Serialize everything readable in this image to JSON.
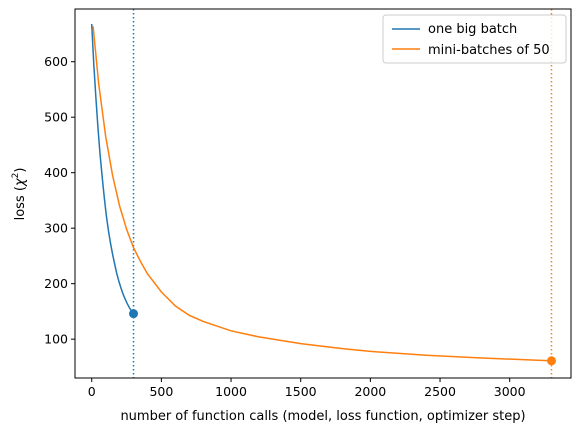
{
  "chart_data": {
    "type": "line",
    "xlabel": "number of function calls (model, loss function, optimizer step)",
    "ylabel_main": "loss (",
    "ylabel_chi": "χ",
    "ylabel_sup": "2",
    "ylabel_end": ")",
    "xlim": [
      -120,
      3440
    ],
    "ylim": [
      30,
      695
    ],
    "x_ticks": [
      0,
      500,
      1000,
      1500,
      2000,
      2500,
      3000
    ],
    "y_ticks": [
      100,
      200,
      300,
      400,
      500,
      600
    ],
    "legend_position": "top-right",
    "grid": false,
    "series": [
      {
        "name": "one big batch",
        "color": "#1f77b4",
        "x": [
          0,
          15,
          30,
          45,
          60,
          75,
          90,
          105,
          120,
          135,
          150,
          165,
          180,
          195,
          210,
          225,
          240,
          255,
          270,
          285,
          300
        ],
        "y": [
          668,
          595,
          535,
          480,
          432,
          392,
          355,
          323,
          296,
          273,
          253,
          235,
          218,
          204,
          192,
          181,
          172,
          164,
          157,
          151,
          146
        ],
        "end_marker": [
          300,
          146
        ],
        "vline_x": 300
      },
      {
        "name": "mini-batches of 50",
        "color": "#ff7f0e",
        "x": [
          10,
          50,
          100,
          150,
          200,
          250,
          300,
          350,
          400,
          500,
          600,
          700,
          800,
          1000,
          1200,
          1500,
          1800,
          2000,
          2400,
          2800,
          3200,
          3300
        ],
        "y": [
          664,
          560,
          465,
          395,
          340,
          298,
          265,
          240,
          218,
          185,
          160,
          143,
          132,
          115,
          104,
          92,
          83,
          78,
          71,
          66,
          62,
          61
        ],
        "end_marker": [
          3300,
          61
        ],
        "vline_x": 3300
      }
    ]
  }
}
